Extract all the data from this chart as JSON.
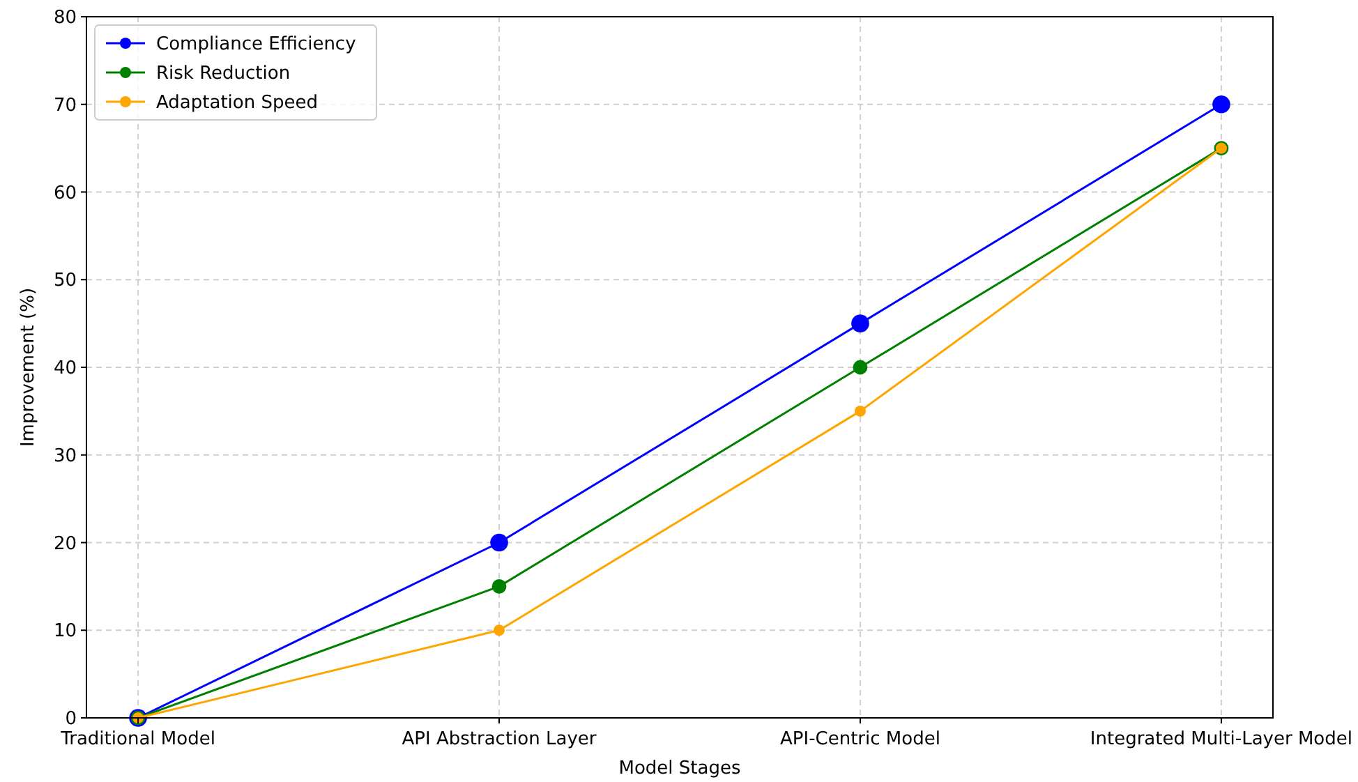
{
  "chart_data": {
    "type": "line",
    "xlabel": "Model Stages",
    "ylabel": "Improvement (%)",
    "categories": [
      "Traditional Model",
      "API Abstraction Layer",
      "API-Centric Model",
      "Integrated Multi-Layer Model"
    ],
    "series": [
      {
        "name": "Compliance Efficiency",
        "color": "#0000ff",
        "values": [
          0,
          20,
          45,
          70
        ]
      },
      {
        "name": "Risk Reduction",
        "color": "#008000",
        "values": [
          0,
          15,
          40,
          65
        ]
      },
      {
        "name": "Adaptation Speed",
        "color": "#ffa500",
        "values": [
          0,
          10,
          35,
          65
        ]
      }
    ],
    "ylim": [
      0,
      80
    ],
    "yticks": [
      0,
      10,
      20,
      30,
      40,
      50,
      60,
      70,
      80
    ],
    "grid": true,
    "legend": "top left",
    "marker": "circle",
    "line_style": "solid"
  }
}
